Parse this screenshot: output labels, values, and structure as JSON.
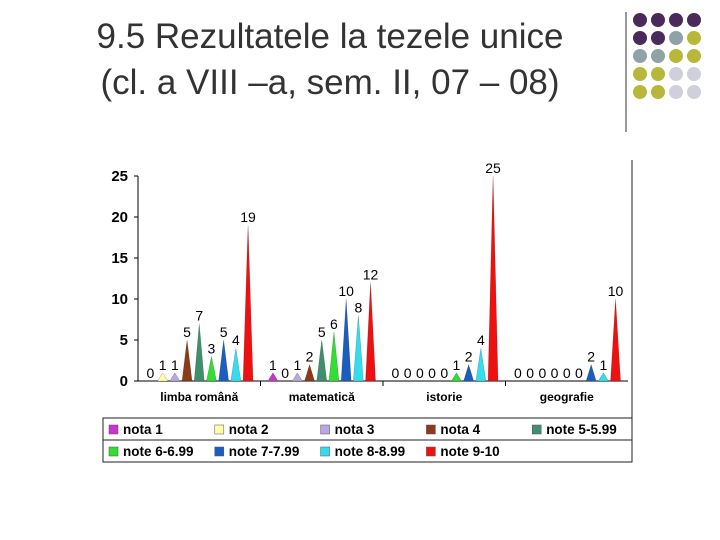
{
  "title": {
    "line1": "9.5 Rezultatele la tezele unice",
    "line2": "(cl. a VIII –a, sem. II, 07 – 08)"
  },
  "decoration": {
    "dot_colors": [
      "#4a2a5a",
      "#8fa3a6",
      "#b7b83a",
      "#d0d0dc"
    ]
  },
  "chart_data": {
    "type": "bar",
    "subtype": "spike",
    "categories": [
      "limba română",
      "matematică",
      "istorie",
      "geografie"
    ],
    "ylim": [
      0,
      25
    ],
    "yticks": [
      0,
      5,
      10,
      15,
      20,
      25
    ],
    "grid": false,
    "legend_position": "bottom",
    "series": [
      {
        "name": "nota 1",
        "color": "#cc33cc",
        "values": [
          0,
          1,
          0,
          0
        ]
      },
      {
        "name": "nota 2",
        "color": "#ffffaa",
        "values": [
          1,
          0,
          0,
          0
        ]
      },
      {
        "name": "nota 3",
        "color": "#b9a6e6",
        "values": [
          1,
          1,
          0,
          0
        ]
      },
      {
        "name": "nota 4",
        "color": "#8b3a1a",
        "values": [
          5,
          2,
          0,
          0
        ]
      },
      {
        "name": "note 5-5.99",
        "color": "#3f8f6f",
        "values": [
          7,
          5,
          0,
          0
        ]
      },
      {
        "name": "note 6-6.99",
        "color": "#33dd33",
        "values": [
          3,
          6,
          1,
          0
        ]
      },
      {
        "name": "note 7-7.99",
        "color": "#1a5fbf",
        "values": [
          5,
          10,
          2,
          2
        ]
      },
      {
        "name": "note 8-8.99",
        "color": "#33ddee",
        "values": [
          4,
          8,
          4,
          1
        ]
      },
      {
        "name": "note 9-10",
        "color": "#ee1111",
        "values": [
          19,
          12,
          25,
          10
        ]
      }
    ]
  }
}
